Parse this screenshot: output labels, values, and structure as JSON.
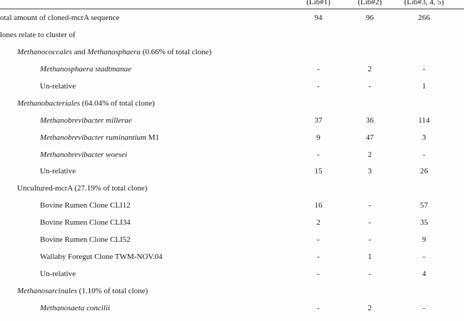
{
  "table": {
    "header": [
      "(Lib#1)",
      "(Lib#2)",
      "(Lib#3, 4, 5)"
    ],
    "rows": [
      {
        "level": 0,
        "label": [
          {
            "text": "otal amount of cloned-mcrA sequence",
            "italic": false
          }
        ],
        "cells": [
          "94",
          "96",
          "266"
        ]
      },
      {
        "level": 0,
        "label": [
          {
            "text": "lones relate to cluster of",
            "italic": false
          }
        ],
        "cells": []
      },
      {
        "level": 1,
        "label": [
          {
            "text": "Methanococcales",
            "italic": true
          },
          {
            "text": " and ",
            "italic": false
          },
          {
            "text": "Methanosphaera",
            "italic": true
          },
          {
            "text": " (0.66% of total clone)",
            "italic": false
          }
        ],
        "cells": []
      },
      {
        "level": 2,
        "label": [
          {
            "text": "Methanosphaera stadtmanae",
            "italic": true
          }
        ],
        "cells": [
          "-",
          "2",
          "-"
        ]
      },
      {
        "level": 2,
        "label": [
          {
            "text": "Un-relative",
            "italic": false
          }
        ],
        "cells": [
          "-",
          "-",
          "1"
        ]
      },
      {
        "level": 1,
        "label": [
          {
            "text": "Methanobacteriales",
            "italic": true
          },
          {
            "text": " (64.04% of total clone)",
            "italic": false
          }
        ],
        "cells": []
      },
      {
        "level": 2,
        "label": [
          {
            "text": "Methanobrevibacter millerae",
            "italic": true
          }
        ],
        "cells": [
          "37",
          "36",
          "114"
        ]
      },
      {
        "level": 2,
        "label": [
          {
            "text": "Methanobrevibacter ruminantium",
            "italic": true
          },
          {
            "text": " M1",
            "italic": false
          }
        ],
        "cells": [
          "9",
          "47",
          "3"
        ]
      },
      {
        "level": 2,
        "label": [
          {
            "text": "Methanobrevibacter woesei",
            "italic": true
          }
        ],
        "cells": [
          "-",
          "2",
          "-"
        ]
      },
      {
        "level": 2,
        "label": [
          {
            "text": "Un-relative",
            "italic": false
          }
        ],
        "cells": [
          "15",
          "3",
          "26"
        ]
      },
      {
        "level": 1,
        "label": [
          {
            "text": "Uncultured-mcrA (27.19% of total clone)",
            "italic": false
          }
        ],
        "cells": []
      },
      {
        "level": 2,
        "label": [
          {
            "text": "Bovine Rumen Clone CLI12",
            "italic": false
          }
        ],
        "cells": [
          "16",
          "-",
          "57"
        ]
      },
      {
        "level": 2,
        "label": [
          {
            "text": "Bovine Rumen Clone CLI34",
            "italic": false
          }
        ],
        "cells": [
          "2",
          "-",
          "35"
        ]
      },
      {
        "level": 2,
        "label": [
          {
            "text": "Bovine Rumen Clone CLI52",
            "italic": false
          }
        ],
        "cells": [
          "-",
          "-",
          "9"
        ]
      },
      {
        "level": 2,
        "label": [
          {
            "text": "Wallaby Foregut Clone TWM-NOV.04",
            "italic": false
          }
        ],
        "cells": [
          "-",
          "1",
          "-"
        ]
      },
      {
        "level": 2,
        "label": [
          {
            "text": "Un-relative",
            "italic": false
          }
        ],
        "cells": [
          "-",
          "-",
          "4"
        ]
      },
      {
        "level": 1,
        "label": [
          {
            "text": "Methanosarcinales",
            "italic": true
          },
          {
            "text": " (1.10% of total clone)",
            "italic": false
          }
        ],
        "cells": []
      },
      {
        "level": 2,
        "label": [
          {
            "text": "Methanosaeta concilii",
            "italic": true
          }
        ],
        "cells": [
          "-",
          "2",
          "-"
        ]
      }
    ]
  }
}
